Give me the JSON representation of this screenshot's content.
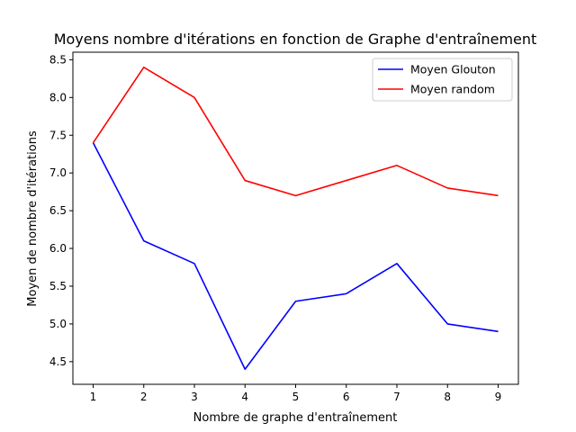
{
  "chart_data": {
    "type": "line",
    "title": "Moyens nombre d'itérations en fonction de Graphe d'entraînement",
    "xlabel": "Nombre de graphe d'entraînement",
    "ylabel": "Moyen de nombre d'itérations",
    "x": [
      1,
      2,
      3,
      4,
      5,
      6,
      7,
      8,
      9
    ],
    "xlim": [
      0.6,
      9.4
    ],
    "ylim": [
      4.2,
      8.6
    ],
    "xticks": [
      "1",
      "2",
      "3",
      "4",
      "5",
      "6",
      "7",
      "8",
      "9"
    ],
    "yticks": [
      "4.5",
      "5.0",
      "5.5",
      "6.0",
      "6.5",
      "7.0",
      "7.5",
      "8.0",
      "8.5"
    ],
    "grid": false,
    "legend_position": "top-right",
    "series": [
      {
        "name": "Moyen Glouton",
        "color": "#0000ff",
        "values": [
          7.4,
          6.1,
          5.8,
          4.4,
          5.3,
          5.4,
          5.8,
          5.0,
          4.9
        ]
      },
      {
        "name": "Moyen random",
        "color": "#ff0000",
        "values": [
          7.4,
          8.4,
          8.0,
          6.9,
          6.7,
          6.9,
          7.1,
          6.8,
          6.7
        ]
      }
    ]
  }
}
